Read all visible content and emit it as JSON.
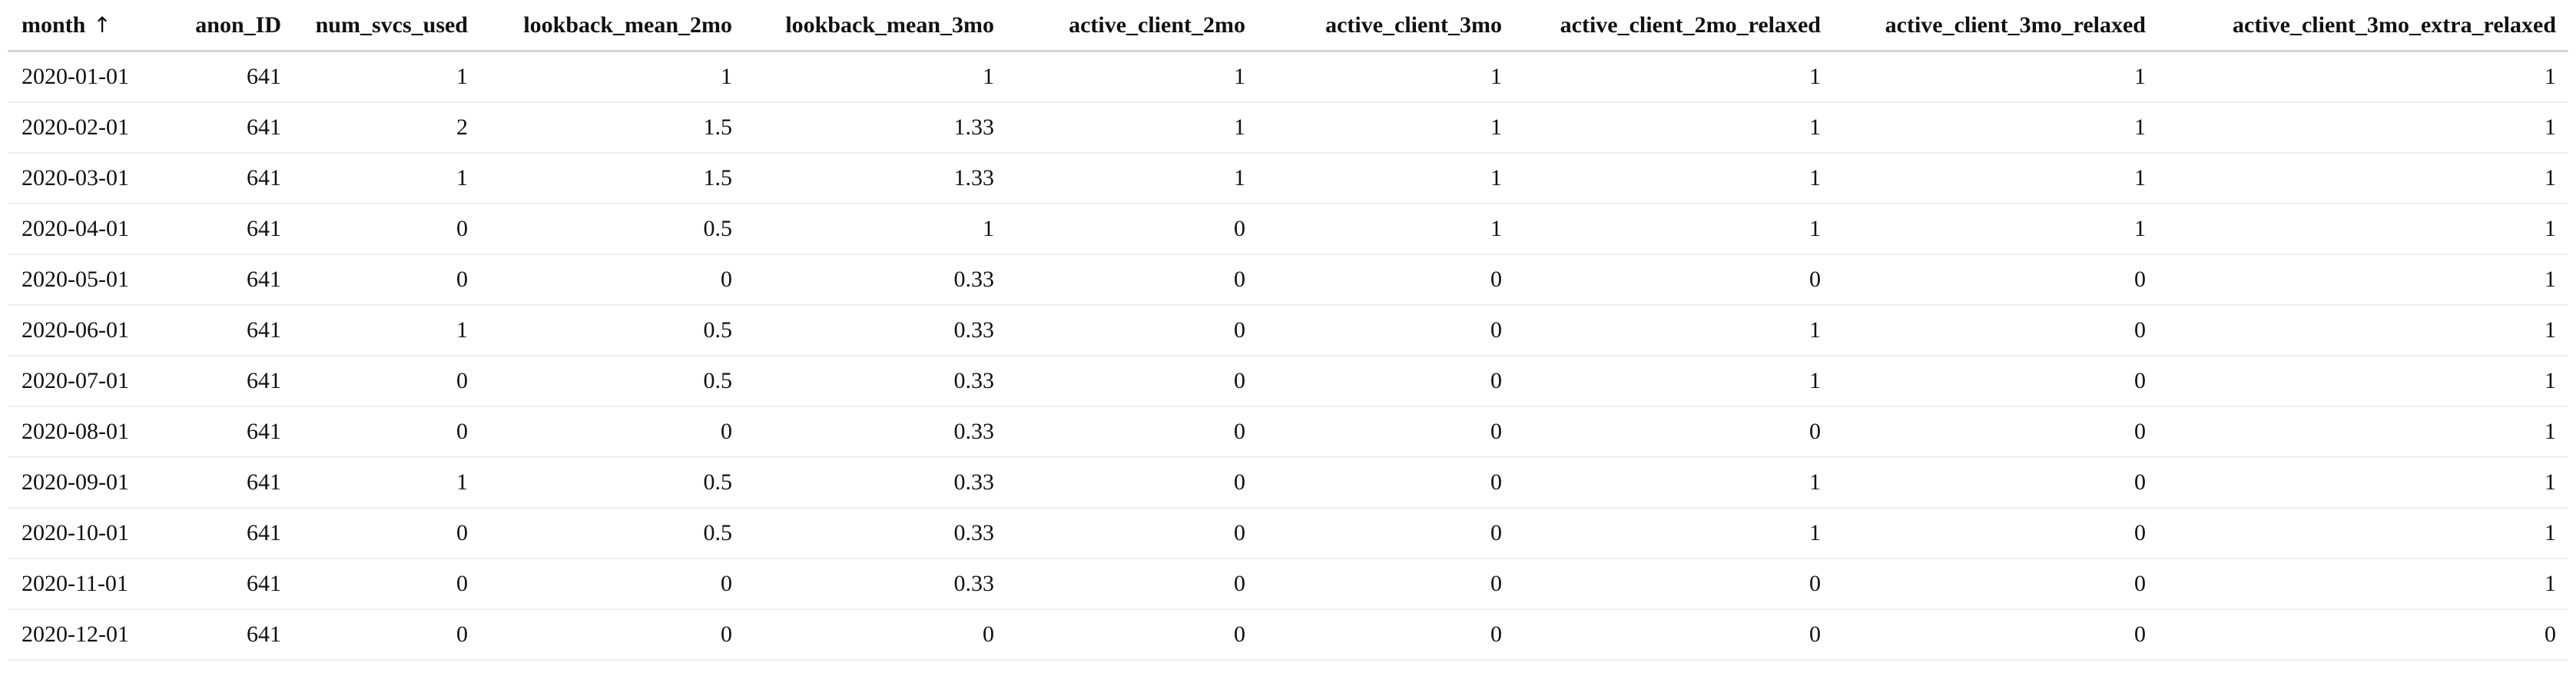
{
  "table": {
    "sort_arrow": "↑",
    "sort_icon_name": "sort-ascending-arrow-icon",
    "columns": [
      "month",
      "anon_ID",
      "num_svcs_used",
      "lookback_mean_2mo",
      "lookback_mean_3mo",
      "active_client_2mo",
      "active_client_3mo",
      "active_client_2mo_relaxed",
      "active_client_3mo_relaxed",
      "active_client_3mo_extra_relaxed"
    ],
    "rows": [
      [
        "2020-01-01",
        "641",
        "1",
        "1",
        "1",
        "1",
        "1",
        "1",
        "1",
        "1"
      ],
      [
        "2020-02-01",
        "641",
        "2",
        "1.5",
        "1.33",
        "1",
        "1",
        "1",
        "1",
        "1"
      ],
      [
        "2020-03-01",
        "641",
        "1",
        "1.5",
        "1.33",
        "1",
        "1",
        "1",
        "1",
        "1"
      ],
      [
        "2020-04-01",
        "641",
        "0",
        "0.5",
        "1",
        "0",
        "1",
        "1",
        "1",
        "1"
      ],
      [
        "2020-05-01",
        "641",
        "0",
        "0",
        "0.33",
        "0",
        "0",
        "0",
        "0",
        "1"
      ],
      [
        "2020-06-01",
        "641",
        "1",
        "0.5",
        "0.33",
        "0",
        "0",
        "1",
        "0",
        "1"
      ],
      [
        "2020-07-01",
        "641",
        "0",
        "0.5",
        "0.33",
        "0",
        "0",
        "1",
        "0",
        "1"
      ],
      [
        "2020-08-01",
        "641",
        "0",
        "0",
        "0.33",
        "0",
        "0",
        "0",
        "0",
        "1"
      ],
      [
        "2020-09-01",
        "641",
        "1",
        "0.5",
        "0.33",
        "0",
        "0",
        "1",
        "0",
        "1"
      ],
      [
        "2020-10-01",
        "641",
        "0",
        "0.5",
        "0.33",
        "0",
        "0",
        "1",
        "0",
        "1"
      ],
      [
        "2020-11-01",
        "641",
        "0",
        "0",
        "0.33",
        "0",
        "0",
        "0",
        "0",
        "1"
      ],
      [
        "2020-12-01",
        "641",
        "0",
        "0",
        "0",
        "0",
        "0",
        "0",
        "0",
        "0"
      ]
    ]
  }
}
